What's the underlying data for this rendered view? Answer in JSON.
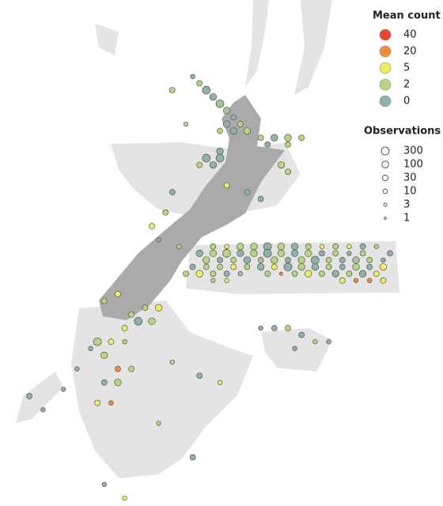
{
  "legend": {
    "color_title": "Mean count",
    "colors": [
      {
        "value": 40,
        "color": "#f2432e"
      },
      {
        "value": 20,
        "color": "#f58a3a"
      },
      {
        "value": 5,
        "color": "#eef05a"
      },
      {
        "value": 2,
        "color": "#b8d67c"
      },
      {
        "value": 0,
        "color": "#8fb2aa"
      }
    ],
    "size_title": "Observations",
    "sizes": [
      300,
      100,
      30,
      10,
      3,
      1
    ]
  },
  "points": [
    [
      29,
      37,
      2,
      30
    ],
    [
      31,
      37,
      5,
      10
    ],
    [
      33,
      37,
      2,
      100
    ],
    [
      35,
      37,
      2,
      100
    ],
    [
      37,
      37,
      0,
      300
    ],
    [
      39,
      37,
      2,
      100
    ],
    [
      41,
      37,
      0,
      100
    ],
    [
      43,
      37,
      2,
      30
    ],
    [
      45,
      37,
      5,
      10
    ],
    [
      47,
      37,
      2,
      30
    ],
    [
      49,
      37,
      5,
      10
    ],
    [
      51,
      37,
      0,
      30
    ],
    [
      53,
      37,
      2,
      10
    ],
    [
      27,
      36,
      0,
      100
    ],
    [
      29,
      36,
      2,
      100
    ],
    [
      31,
      36,
      2,
      300
    ],
    [
      33,
      36,
      0,
      100
    ],
    [
      35,
      36,
      2,
      100
    ],
    [
      37,
      36,
      0,
      300
    ],
    [
      39,
      36,
      2,
      100
    ],
    [
      41,
      36,
      0,
      100
    ],
    [
      43,
      36,
      2,
      100
    ],
    [
      45,
      36,
      0,
      30
    ],
    [
      47,
      36,
      2,
      30
    ],
    [
      49,
      36,
      0,
      10
    ],
    [
      51,
      36,
      2,
      30
    ],
    [
      55,
      36,
      0,
      30
    ],
    [
      28,
      35,
      2,
      100
    ],
    [
      30,
      35,
      0,
      30
    ],
    [
      32,
      35,
      2,
      30
    ],
    [
      34,
      35,
      0,
      100
    ],
    [
      36,
      35,
      1,
      30
    ],
    [
      38,
      35,
      2,
      100
    ],
    [
      40,
      35,
      0,
      30
    ],
    [
      42,
      35,
      2,
      100
    ],
    [
      44,
      35,
      0,
      300
    ],
    [
      46,
      35,
      2,
      30
    ],
    [
      48,
      35,
      0,
      30
    ],
    [
      50,
      35,
      1,
      100
    ],
    [
      52,
      35,
      2,
      30
    ],
    [
      54,
      35,
      0,
      10
    ],
    [
      26,
      34,
      0,
      30
    ],
    [
      28,
      34,
      2,
      30
    ],
    [
      30,
      34,
      2,
      30
    ],
    [
      32,
      34,
      5,
      30
    ],
    [
      34,
      34,
      2,
      30
    ],
    [
      36,
      34,
      0,
      100
    ],
    [
      38,
      34,
      5,
      30
    ],
    [
      40,
      34,
      0,
      300
    ],
    [
      42,
      34,
      2,
      100
    ],
    [
      44,
      34,
      0,
      100
    ],
    [
      46,
      34,
      2,
      30
    ],
    [
      48,
      34,
      0,
      30
    ],
    [
      50,
      34,
      2,
      100
    ],
    [
      52,
      34,
      0,
      30
    ],
    [
      54,
      34,
      5,
      100
    ],
    [
      25,
      33,
      2,
      30
    ],
    [
      27,
      33,
      5,
      100
    ],
    [
      29,
      33,
      2,
      30
    ],
    [
      31,
      33,
      0,
      30
    ],
    [
      33,
      33,
      1,
      10
    ],
    [
      37,
      33,
      2,
      30
    ],
    [
      39,
      33,
      20,
      3
    ],
    [
      41,
      33,
      2,
      30
    ],
    [
      43,
      33,
      5,
      100
    ],
    [
      45,
      33,
      2,
      30
    ],
    [
      47,
      33,
      0,
      100
    ],
    [
      49,
      33,
      2,
      30
    ],
    [
      51,
      33,
      0,
      100
    ],
    [
      53,
      33,
      5,
      30
    ],
    [
      29,
      32,
      2,
      10
    ],
    [
      31,
      32,
      5,
      10
    ],
    [
      48,
      32,
      5,
      30
    ],
    [
      50,
      32,
      20,
      10
    ],
    [
      52,
      32,
      20,
      10
    ],
    [
      54,
      32,
      5,
      30
    ],
    [
      26,
      62,
      0,
      10
    ],
    [
      27,
      61,
      2,
      30
    ],
    [
      28,
      60,
      0,
      300
    ],
    [
      29,
      59,
      0,
      100
    ],
    [
      30,
      58,
      1,
      300
    ],
    [
      31,
      57,
      1,
      100
    ],
    [
      32,
      56,
      0,
      30
    ],
    [
      31,
      55,
      0,
      100
    ],
    [
      33,
      55,
      2,
      30
    ],
    [
      30,
      54,
      2,
      30
    ],
    [
      32,
      54,
      0,
      100
    ],
    [
      34,
      54,
      2,
      100
    ],
    [
      36,
      53,
      2,
      30
    ],
    [
      38,
      53,
      0,
      100
    ],
    [
      40,
      53,
      2,
      100
    ],
    [
      42,
      53,
      2,
      30
    ],
    [
      37,
      52,
      0,
      30
    ],
    [
      40,
      52,
      2,
      30
    ],
    [
      30,
      51,
      0,
      100
    ],
    [
      28,
      50,
      0,
      300
    ],
    [
      30,
      50,
      0,
      300
    ],
    [
      27,
      49,
      2,
      30
    ],
    [
      29,
      49,
      0,
      100
    ],
    [
      39,
      49,
      2,
      100
    ],
    [
      40,
      48,
      2,
      30
    ],
    [
      31,
      46,
      5,
      30
    ],
    [
      34,
      45,
      0,
      30
    ],
    [
      36,
      44,
      0,
      30
    ],
    [
      23,
      45,
      0,
      30
    ],
    [
      22,
      42,
      2,
      30
    ],
    [
      20,
      40,
      5,
      30
    ],
    [
      21,
      38,
      0,
      10
    ],
    [
      24,
      37,
      2,
      10
    ],
    [
      25,
      55,
      2,
      10
    ],
    [
      23,
      60,
      2,
      30
    ],
    [
      19,
      28,
      2,
      30
    ],
    [
      21,
      28,
      5,
      100
    ],
    [
      17,
      27,
      2,
      30
    ],
    [
      18,
      26,
      0,
      300
    ],
    [
      20,
      26,
      2,
      100
    ],
    [
      16,
      25,
      5,
      30
    ],
    [
      13,
      29,
      2,
      30
    ],
    [
      15,
      30,
      5,
      30
    ],
    [
      12,
      23,
      2,
      300
    ],
    [
      14,
      23,
      5,
      30
    ],
    [
      16,
      23,
      2,
      10
    ],
    [
      13,
      21,
      2,
      100
    ],
    [
      15,
      19,
      20,
      30
    ],
    [
      17,
      19,
      2,
      30
    ],
    [
      13,
      17,
      0,
      30
    ],
    [
      15,
      17,
      2,
      100
    ],
    [
      12,
      14,
      5,
      30
    ],
    [
      14,
      14,
      20,
      10
    ],
    [
      11,
      22,
      0,
      10
    ],
    [
      9,
      19,
      0,
      10
    ],
    [
      7,
      16,
      0,
      10
    ],
    [
      23,
      20,
      2,
      10
    ],
    [
      27,
      18,
      0,
      30
    ],
    [
      30,
      17,
      5,
      10
    ],
    [
      21,
      11,
      2,
      10
    ],
    [
      26,
      6,
      0,
      30
    ],
    [
      13,
      2,
      0,
      10
    ],
    [
      16,
      0,
      5,
      10
    ],
    [
      2,
      15,
      0,
      30
    ],
    [
      4,
      13,
      0,
      10
    ],
    [
      36,
      25,
      0,
      10
    ],
    [
      38,
      25,
      0,
      30
    ],
    [
      40,
      25,
      2,
      30
    ],
    [
      42,
      24,
      0,
      30
    ],
    [
      44,
      23,
      2,
      10
    ],
    [
      46,
      23,
      0,
      10
    ],
    [
      41,
      22,
      0,
      10
    ]
  ]
}
